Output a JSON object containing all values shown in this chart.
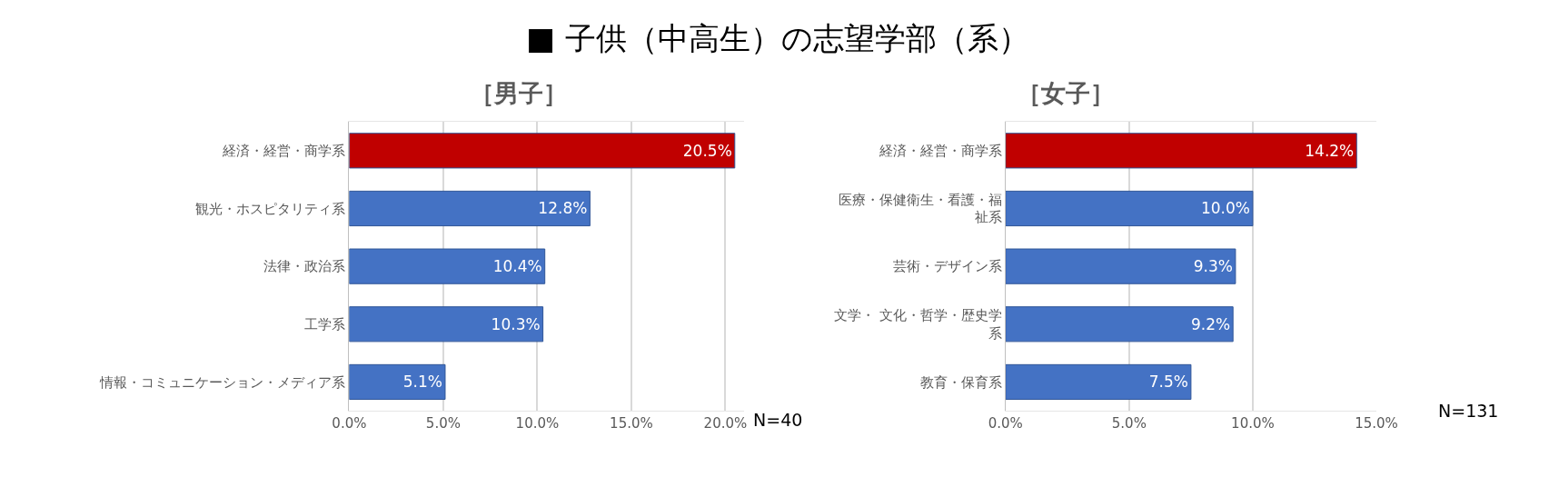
{
  "chart_data": [
    {
      "type": "bar",
      "orientation": "horizontal",
      "title": "■ 子供（中高生）の志望学部（系）",
      "subtitle": "［男子］",
      "categories": [
        "経済・経営・商学系",
        "観光・ホスピタリティ系",
        "法律・政治系",
        "工学系",
        "情報・コミュニケーション・メディア系"
      ],
      "values": [
        20.5,
        12.8,
        10.4,
        10.3,
        5.1
      ],
      "colors": [
        "#c00000",
        "#4472c4",
        "#4472c4",
        "#4472c4",
        "#4472c4"
      ],
      "value_labels": [
        "20.5%",
        "12.8%",
        "10.4%",
        "10.3%",
        "5.1%"
      ],
      "xlim": [
        0,
        21
      ],
      "xticks": [
        {
          "value": 0,
          "label": "0.0%"
        },
        {
          "value": 5,
          "label": "5.0%"
        },
        {
          "value": 10,
          "label": "10.0%"
        },
        {
          "value": 15,
          "label": "15.0%"
        },
        {
          "value": 20,
          "label": "20.0%"
        }
      ],
      "grid": "x",
      "annotations": [
        "N=40"
      ]
    },
    {
      "type": "bar",
      "orientation": "horizontal",
      "subtitle": "［女子］",
      "categories": [
        "経済・経営・商学系",
        "医療・保健衛生・看護・福祉系",
        "芸術・デザイン系",
        "文学・ 文化・哲学・歴史学系",
        "教育・保育系"
      ],
      "values": [
        14.2,
        10.0,
        9.3,
        9.2,
        7.5
      ],
      "colors": [
        "#c00000",
        "#4472c4",
        "#4472c4",
        "#4472c4",
        "#4472c4"
      ],
      "value_labels": [
        "14.2%",
        "10.0%",
        "9.3%",
        "9.2%",
        "7.5%"
      ],
      "xlim": [
        0,
        15
      ],
      "xticks": [
        {
          "value": 0,
          "label": "0.0%"
        },
        {
          "value": 5,
          "label": "5.0%"
        },
        {
          "value": 10,
          "label": "10.0%"
        },
        {
          "value": 15,
          "label": "15.0%"
        }
      ],
      "grid": "x",
      "annotations": [
        "N=131"
      ]
    }
  ]
}
